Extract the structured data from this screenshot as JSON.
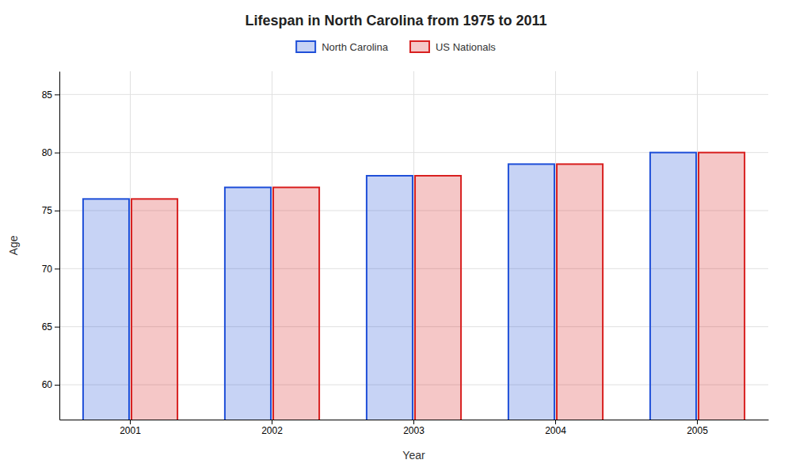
{
  "chart_data": {
    "type": "bar",
    "title": "Lifespan in North Carolina from 1975 to 2011",
    "x_label": "Year",
    "y_label": "Age",
    "categories": [
      "2001",
      "2002",
      "2003",
      "2004",
      "2005"
    ],
    "series": [
      {
        "name": "North Carolina",
        "color": "#1f4fd8",
        "values": [
          76,
          77,
          78,
          79,
          80
        ]
      },
      {
        "name": "US Nationals",
        "color": "#d81f1f",
        "values": [
          76,
          77,
          78,
          79,
          80
        ]
      }
    ],
    "ylim": [
      57,
      87
    ],
    "yticks": [
      60,
      65,
      70,
      75,
      80,
      85
    ],
    "grid": true,
    "legend": "top"
  }
}
